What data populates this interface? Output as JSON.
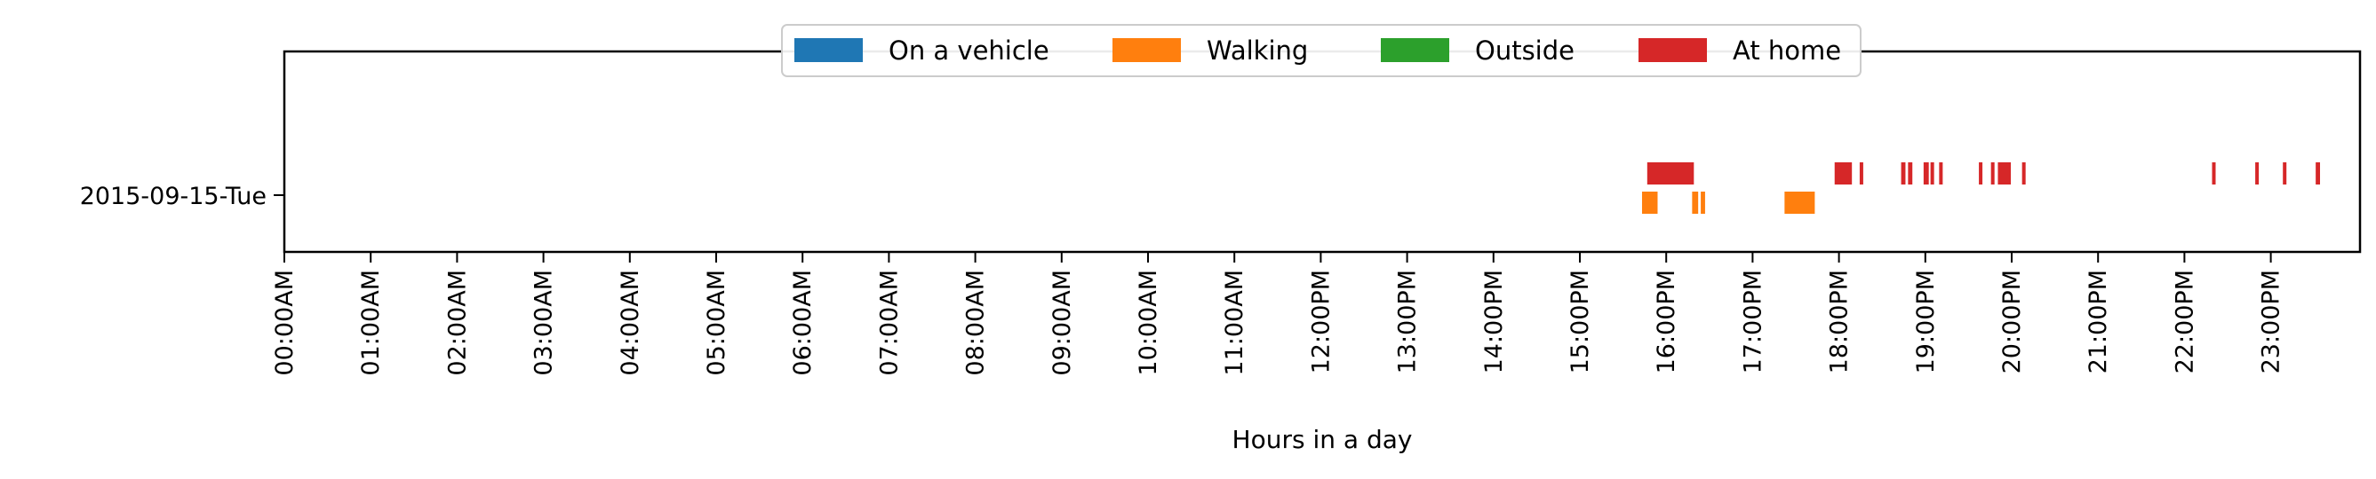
{
  "chart_data": {
    "type": "broken-bar-timeline",
    "xlabel": "Hours in a day",
    "xlim": [
      0,
      24
    ],
    "x_ticks": [
      "00:00AM",
      "01:00AM",
      "02:00AM",
      "03:00AM",
      "04:00AM",
      "05:00AM",
      "06:00AM",
      "07:00AM",
      "08:00AM",
      "09:00AM",
      "10:00AM",
      "11:00AM",
      "12:00PM",
      "13:00PM",
      "14:00PM",
      "15:00PM",
      "16:00PM",
      "17:00PM",
      "18:00PM",
      "19:00PM",
      "20:00PM",
      "21:00PM",
      "22:00PM",
      "23:00PM"
    ],
    "categories": [
      "2015-09-15-Tue"
    ],
    "legend_position": "top-center",
    "series": [
      {
        "name": "On a vehicle",
        "color": "#1f77b4",
        "intervals": []
      },
      {
        "name": "Walking",
        "color": "#ff7f0e",
        "intervals": [
          [
            15.72,
            15.9
          ],
          [
            16.3,
            16.37
          ],
          [
            16.4,
            16.45
          ],
          [
            17.37,
            17.72
          ]
        ]
      },
      {
        "name": "Outside",
        "color": "#2ca02c",
        "intervals": []
      },
      {
        "name": "At home",
        "color": "#d62728",
        "intervals": [
          [
            15.78,
            16.32
          ],
          [
            17.95,
            18.15
          ],
          [
            18.24,
            18.28
          ],
          [
            18.72,
            18.77
          ],
          [
            18.8,
            18.85
          ],
          [
            18.98,
            19.04
          ],
          [
            19.06,
            19.1
          ],
          [
            19.16,
            19.2
          ],
          [
            19.62,
            19.66
          ],
          [
            19.76,
            19.8
          ],
          [
            19.84,
            19.99
          ],
          [
            20.12,
            20.16
          ],
          [
            22.32,
            22.35
          ],
          [
            22.82,
            22.85
          ],
          [
            23.14,
            23.18
          ],
          [
            23.52,
            23.57
          ]
        ]
      }
    ]
  }
}
